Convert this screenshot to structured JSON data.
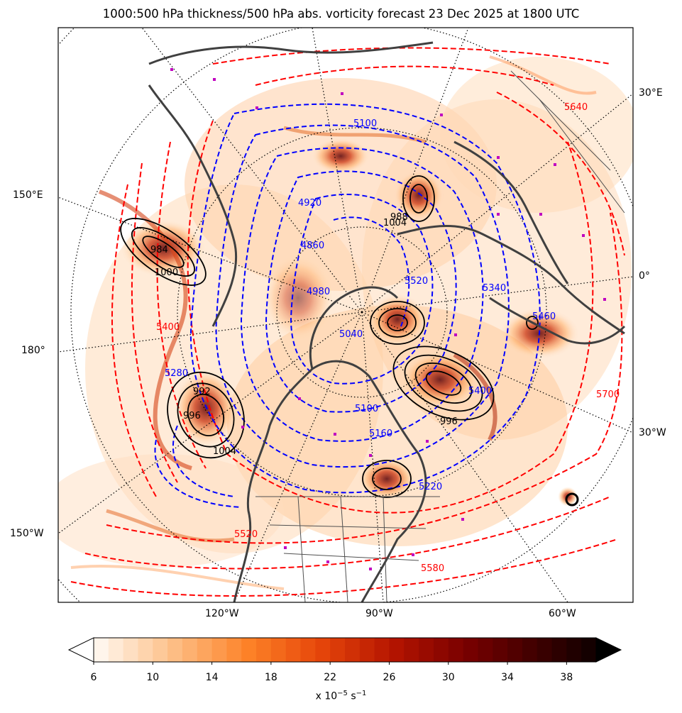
{
  "title": "1000:500 hPa thickness/500 hPa abs. vorticity forecast 23 Dec 2025 at 1800 UTC",
  "colors": {
    "thickness_cold": "#0000ff",
    "thickness_warm": "#ff0000",
    "mslp": "#000000",
    "coastline": "#404040",
    "graticule": "#000000",
    "markers": "#c000c0"
  },
  "graticule_labels": {
    "left": [
      "150°E",
      "180°",
      "150°W"
    ],
    "right": [
      "30°E",
      "0°",
      "30°W"
    ],
    "bottom": [
      "120°W",
      "90°W",
      "60°W"
    ]
  },
  "thickness_labels_blue": [
    "5100",
    "4920",
    "4860",
    "4980",
    "5040",
    "5100",
    "5160",
    "5220",
    "5280",
    "5340",
    "5400",
    "5460",
    "5520"
  ],
  "thickness_labels_red": [
    "5400",
    "5520",
    "5580",
    "5640",
    "5700"
  ],
  "mslp_labels": [
    "984",
    "988",
    "992",
    "996",
    "1000",
    "1004"
  ],
  "colorbar": {
    "ticks": [
      "6",
      "10",
      "14",
      "18",
      "22",
      "26",
      "30",
      "34",
      "38"
    ],
    "label_prefix": "x 10",
    "label_exp": "−5",
    "label_unit": " s",
    "label_unit_exp": "−1",
    "levels_min": 6,
    "levels_max": 40,
    "levels_step": 1
  }
}
